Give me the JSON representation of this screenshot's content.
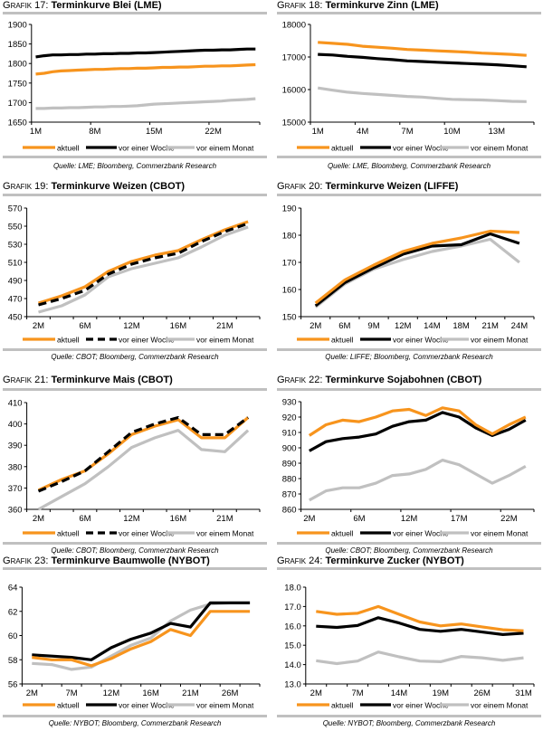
{
  "legend_labels": [
    "aktuell",
    "vor einer Woche",
    "vor einem Monat"
  ],
  "series_colors": {
    "aktuell": "#f7941d",
    "woche": "#000000",
    "monat": "#c0c0c0"
  },
  "chart_data": [
    {
      "id": "g17",
      "type": "line",
      "title_prefix": "Grafik",
      "title_number": "17",
      "title": "Terminkurve Blei (LME)",
      "source": "Quelle: LME; Bloomberg, Commerzbank Research",
      "yticks": [
        "1900",
        "1850",
        "1800",
        "1750",
        "1700",
        "1650"
      ],
      "ylim": [
        1650,
        1900
      ],
      "xlabels": [
        "1M",
        "8M",
        "15M",
        "22M"
      ],
      "xlabel_index": [
        0,
        7,
        14,
        21
      ],
      "n": 27,
      "dashed_week": false,
      "series": [
        {
          "name": "aktuell",
          "values": [
            1773,
            1775,
            1779,
            1781,
            1782,
            1783,
            1784,
            1785,
            1785,
            1786,
            1787,
            1787,
            1788,
            1788,
            1789,
            1790,
            1790,
            1791,
            1791,
            1792,
            1793,
            1793,
            1794,
            1794,
            1795,
            1796,
            1797
          ]
        },
        {
          "name": "vor einer Woche",
          "values": [
            1817,
            1820,
            1822,
            1822,
            1823,
            1823,
            1824,
            1824,
            1825,
            1825,
            1826,
            1826,
            1827,
            1827,
            1828,
            1829,
            1830,
            1831,
            1832,
            1833,
            1834,
            1834,
            1835,
            1835,
            1836,
            1837,
            1837
          ]
        },
        {
          "name": "vor einem Monat",
          "values": [
            1685,
            1685,
            1686,
            1686,
            1687,
            1687,
            1688,
            1689,
            1689,
            1690,
            1690,
            1691,
            1692,
            1694,
            1696,
            1697,
            1698,
            1699,
            1700,
            1701,
            1702,
            1703,
            1704,
            1706,
            1707,
            1708,
            1710
          ]
        }
      ]
    },
    {
      "id": "g18",
      "type": "line",
      "title_prefix": "Grafik",
      "title_number": "18",
      "title": "Terminkurve Zinn (LME)",
      "source": "Quelle: LME, Bloomberg, Commerzbank Research",
      "yticks": [
        "18000",
        "17000",
        "16000",
        "15000"
      ],
      "ylim": [
        15000,
        18000
      ],
      "xlabels": [
        "1M",
        "4M",
        "7M",
        "10M",
        "13M"
      ],
      "xlabel_index": [
        0,
        3,
        6,
        9,
        12
      ],
      "n": 15,
      "dashed_week": false,
      "series": [
        {
          "name": "aktuell",
          "values": [
            17450,
            17420,
            17390,
            17330,
            17300,
            17270,
            17230,
            17210,
            17190,
            17170,
            17150,
            17120,
            17100,
            17080,
            17050
          ]
        },
        {
          "name": "vor einer Woche",
          "values": [
            17080,
            17060,
            17020,
            16990,
            16950,
            16920,
            16880,
            16860,
            16840,
            16820,
            16800,
            16780,
            16760,
            16730,
            16700
          ]
        },
        {
          "name": "vor einem Monat",
          "values": [
            16050,
            15980,
            15920,
            15880,
            15850,
            15820,
            15790,
            15770,
            15730,
            15700,
            15690,
            15680,
            15660,
            15640,
            15630
          ]
        }
      ]
    },
    {
      "id": "g19",
      "type": "line",
      "title_prefix": "Grafik",
      "title_number": "19",
      "title": "Terminkurve Weizen (CBOT)",
      "source": "Quelle: CBOT; Bloomberg, Commerzbank Research",
      "yticks": [
        "570",
        "550",
        "530",
        "510",
        "490",
        "470",
        "450"
      ],
      "ylim": [
        450,
        570
      ],
      "xlabels": [
        "2M",
        "6M",
        "12M",
        "16M",
        "21M"
      ],
      "xlabel_index": [
        0,
        2,
        4,
        6,
        8
      ],
      "n": 10,
      "dashed_week": true,
      "series": [
        {
          "name": "aktuell",
          "values": [
            465,
            473,
            483,
            500,
            511,
            518,
            523,
            535,
            546,
            555
          ]
        },
        {
          "name": "vor einer Woche",
          "values": [
            463,
            470,
            479,
            497,
            508,
            515,
            520,
            533,
            544,
            553
          ]
        },
        {
          "name": "vor einem Monat",
          "values": [
            455,
            462,
            474,
            494,
            503,
            509,
            515,
            527,
            540,
            549
          ]
        }
      ]
    },
    {
      "id": "g20",
      "type": "line",
      "title_prefix": "Grafik",
      "title_number": "20",
      "title": "Terminkurve Weizen (LIFFE)",
      "source": "Quelle: LIFFE; Bloomberg, Commerzbank Research",
      "yticks": [
        "190",
        "180",
        "170",
        "160",
        "150"
      ],
      "ylim": [
        150,
        190
      ],
      "xlabels": [
        "2M",
        "6M",
        "9M",
        "12M",
        "14M",
        "18M",
        "21M",
        "24M"
      ],
      "xlabel_index": [
        0,
        1,
        2,
        3,
        4,
        5,
        6,
        7
      ],
      "n": 8,
      "dashed_week": false,
      "series": [
        {
          "name": "aktuell",
          "values": [
            155,
            163.5,
            169,
            174,
            177,
            179,
            181.5,
            181
          ]
        },
        {
          "name": "vor einer Woche",
          "values": [
            154,
            162.5,
            168,
            173,
            176,
            176.5,
            180.5,
            177
          ]
        },
        {
          "name": "vor einem Monat",
          "values": [
            153.5,
            162,
            167.5,
            171,
            174,
            176,
            178.5,
            170
          ]
        }
      ]
    },
    {
      "id": "g21",
      "type": "line",
      "title_prefix": "Grafik",
      "title_number": "21",
      "title": "Terminkurve Mais (CBOT)",
      "source": "Quelle: CBOT; Bloomberg, Commerzbank Research",
      "yticks": [
        "410",
        "400",
        "390",
        "380",
        "370",
        "360"
      ],
      "ylim": [
        360,
        410
      ],
      "xlabels": [
        "2M",
        "6M",
        "12M",
        "16M",
        "21M"
      ],
      "xlabel_index": [
        0,
        2,
        4,
        6,
        8
      ],
      "n": 10,
      "dashed_week": true,
      "series": [
        {
          "name": "aktuell",
          "values": [
            369,
            374,
            378,
            386,
            395,
            399,
            402,
            393.5,
            393.5,
            403
          ]
        },
        {
          "name": "vor einer Woche",
          "values": [
            368.5,
            373,
            378,
            387,
            396,
            400,
            403,
            395,
            395,
            403
          ]
        },
        {
          "name": "vor einem Monat",
          "values": [
            360,
            366,
            372,
            380,
            389,
            393.5,
            397,
            388,
            387,
            397
          ]
        }
      ]
    },
    {
      "id": "g22",
      "type": "line",
      "title_prefix": "Grafik",
      "title_number": "22",
      "title": "Terminkurve Sojabohnen (CBOT)",
      "source": "Quelle: CBOT; Bloomberg, Commerzbank Research",
      "yticks": [
        "930",
        "920",
        "910",
        "900",
        "890",
        "880",
        "870",
        "860"
      ],
      "ylim": [
        860,
        930
      ],
      "xlabels": [
        "2M",
        "6M",
        "12M",
        "17M",
        "22M"
      ],
      "xlabel_index": [
        0,
        3,
        6,
        9,
        12
      ],
      "n": 14,
      "dashed_week": false,
      "series": [
        {
          "name": "aktuell",
          "values": [
            908,
            915,
            918,
            917,
            920,
            924,
            925,
            921,
            926,
            924,
            915,
            909,
            915,
            920
          ]
        },
        {
          "name": "vor einer Woche",
          "values": [
            898,
            904,
            906,
            907,
            909,
            914,
            917,
            918,
            923,
            920,
            913,
            908,
            912,
            918
          ]
        },
        {
          "name": "vor einem Monat",
          "values": [
            866,
            872,
            874,
            874,
            877,
            882,
            883,
            886,
            892,
            889,
            883,
            877,
            882,
            888
          ]
        }
      ]
    },
    {
      "id": "g23",
      "type": "line",
      "title_prefix": "Grafik",
      "title_number": "23",
      "title": "Terminkurve Baumwolle (NYBOT)",
      "source": "Quelle: NYBOT; Bloomberg, Commerzbank Research",
      "yticks": [
        "64",
        "62",
        "60",
        "58",
        "56"
      ],
      "ylim": [
        56,
        64
      ],
      "xlabels": [
        "2M",
        "7M",
        "12M",
        "16M",
        "21M",
        "26M"
      ],
      "xlabel_index": [
        0,
        2,
        4,
        6,
        8,
        10
      ],
      "n": 12,
      "dashed_week": false,
      "series": [
        {
          "name": "aktuell",
          "values": [
            58.2,
            58.0,
            58.0,
            57.5,
            58.1,
            58.9,
            59.5,
            60.5,
            60.0,
            62.0,
            62.0,
            62.0
          ]
        },
        {
          "name": "vor einer Woche",
          "values": [
            58.4,
            58.3,
            58.2,
            58.0,
            59.0,
            59.7,
            60.2,
            61.0,
            60.7,
            62.7,
            62.7,
            62.7
          ]
        },
        {
          "name": "vor einem Monat",
          "values": [
            57.7,
            57.6,
            57.2,
            57.4,
            58.3,
            59.2,
            59.8,
            61.2,
            62.1,
            62.6,
            62.7,
            62.7
          ]
        }
      ]
    },
    {
      "id": "g24",
      "type": "line",
      "title_prefix": "Grafik",
      "title_number": "24",
      "title": "Terminkurve Zucker (NYBOT)",
      "source": "Quelle: NYBOT; Bloomberg, Commerzbank Research",
      "yticks": [
        "18.0",
        "17.0",
        "16.0",
        "15.0",
        "14.0",
        "13.0"
      ],
      "ylim": [
        13.0,
        18.0
      ],
      "xlabels": [
        "2M",
        "7M",
        "14M",
        "19M",
        "26M",
        "31M"
      ],
      "xlabel_index": [
        0,
        2,
        4,
        6,
        8,
        10
      ],
      "n": 11,
      "dashed_week": false,
      "series": [
        {
          "name": "aktuell",
          "values": [
            16.75,
            16.6,
            16.65,
            17.0,
            16.6,
            16.2,
            16.0,
            16.1,
            15.95,
            15.8,
            15.75
          ]
        },
        {
          "name": "vor einer Woche",
          "values": [
            15.98,
            15.92,
            16.02,
            16.42,
            16.15,
            15.82,
            15.72,
            15.82,
            15.68,
            15.55,
            15.62
          ]
        },
        {
          "name": "vor einem Monat",
          "values": [
            14.2,
            14.05,
            14.18,
            14.65,
            14.4,
            14.18,
            14.15,
            14.42,
            14.35,
            14.22,
            14.35
          ]
        }
      ]
    }
  ]
}
